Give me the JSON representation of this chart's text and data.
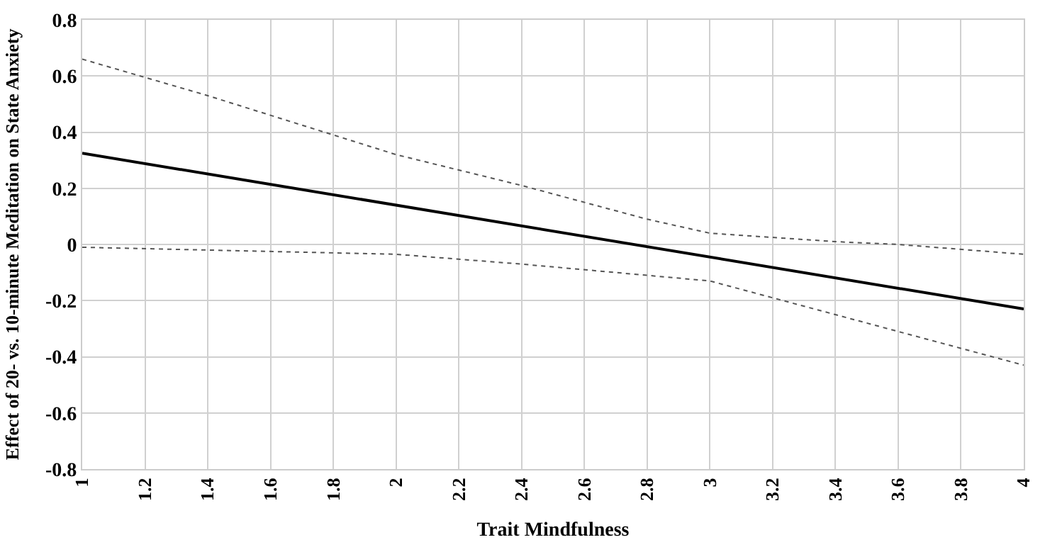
{
  "chart_data": {
    "type": "line",
    "xlabel": "Trait Mindfulness",
    "ylabel": "Effect of 20- vs. 10-minute Meditation on State Anxiety",
    "xlim": [
      1,
      4
    ],
    "xticks": [
      1,
      1.2,
      1.4,
      1.6,
      1.8,
      2,
      2.2,
      2.4,
      2.6,
      2.8,
      3,
      3.2,
      3.4,
      3.6,
      3.8,
      4
    ],
    "ylim": [
      -0.8,
      0.8
    ],
    "yticks": [
      -0.8,
      -0.6,
      -0.4,
      -0.2,
      0,
      0.2,
      0.4,
      0.6,
      0.8
    ],
    "grid": true,
    "series": [
      {
        "color": "#000000",
        "line_style": "solid",
        "x": [
          1,
          4
        ],
        "values": [
          0.325,
          -0.23
        ]
      },
      {
        "color": "#555555",
        "line_style": "dotted",
        "x": [
          1,
          1.4,
          1.8,
          2,
          2.4,
          2.8,
          3,
          3.4,
          3.6,
          4
        ],
        "values": [
          0.66,
          0.53,
          0.39,
          0.32,
          0.21,
          0.09,
          0.04,
          0.01,
          0.0,
          -0.035
        ]
      },
      {
        "color": "#555555",
        "line_style": "dotted",
        "x": [
          1,
          2,
          2.4,
          2.8,
          3,
          3.2,
          3.4,
          3.6,
          4
        ],
        "values": [
          -0.01,
          -0.035,
          -0.07,
          -0.11,
          -0.13,
          -0.19,
          -0.25,
          -0.31,
          -0.43
        ]
      }
    ]
  }
}
